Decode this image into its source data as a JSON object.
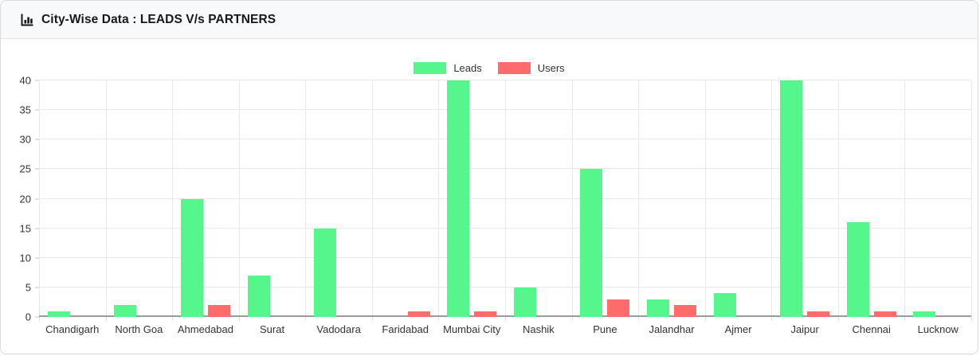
{
  "header": {
    "title": "City-Wise Data : LEADS V/s PARTNERS"
  },
  "chart_data": {
    "type": "bar",
    "title": "City-Wise Data : LEADS V/s PARTNERS",
    "categories": [
      "Chandigarh",
      "North Goa",
      "Ahmedabad",
      "Surat",
      "Vadodara",
      "Faridabad",
      "Mumbai City",
      "Nashik",
      "Pune",
      "Jalandhar",
      "Ajmer",
      "Jaipur",
      "Chennai",
      "Lucknow"
    ],
    "series": [
      {
        "name": "Leads",
        "color": "#55f68c",
        "values": [
          1,
          2,
          20,
          7,
          15,
          0,
          40,
          5,
          25,
          3,
          4,
          40,
          16,
          1
        ]
      },
      {
        "name": "Users",
        "color": "#fd6b6b",
        "values": [
          0,
          0,
          2,
          0,
          0,
          1,
          1,
          0,
          3,
          2,
          0,
          1,
          1,
          0
        ]
      }
    ],
    "xlabel": "",
    "ylabel": "",
    "ylim": [
      0,
      40
    ],
    "yticks": [
      0,
      5,
      10,
      15,
      20,
      25,
      30,
      35,
      40
    ],
    "grid": true,
    "legend_position": "top-center"
  },
  "colors": {
    "header_bg": "#f8f9fa",
    "card_border": "#d9d9de",
    "gridline": "#e9e9e9",
    "axis_line": "#9b9b9b",
    "label_text": "#333333"
  }
}
